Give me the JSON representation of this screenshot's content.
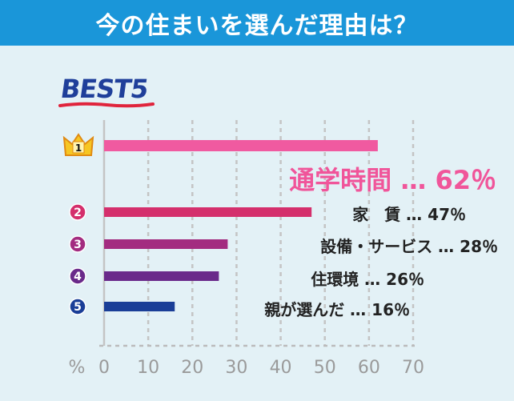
{
  "header": {
    "title": "今の住まいを選んだ理由は？"
  },
  "ranking_title": "BEST5",
  "chart_data": {
    "type": "bar",
    "orientation": "horizontal",
    "title": "今の住まいを選んだ理由は？",
    "xlabel": "%",
    "xlim": [
      0,
      70
    ],
    "xticks": [
      0,
      10,
      20,
      30,
      40,
      50,
      60,
      70
    ],
    "grid": true,
    "categories": [
      "通学時間",
      "家　賃",
      "設備・サービス",
      "住環境",
      "親が選んだ"
    ],
    "values": [
      62,
      47,
      28,
      26,
      16
    ],
    "ranks": [
      "1",
      "2",
      "3",
      "4",
      "5"
    ],
    "value_labels": [
      "62％",
      "47％",
      "28％",
      "26％",
      "16％"
    ],
    "separator": "…",
    "colors": [
      "#f05aa0",
      "#d42f6c",
      "#a32c80",
      "#6a2a8a",
      "#1a3e97"
    ]
  }
}
